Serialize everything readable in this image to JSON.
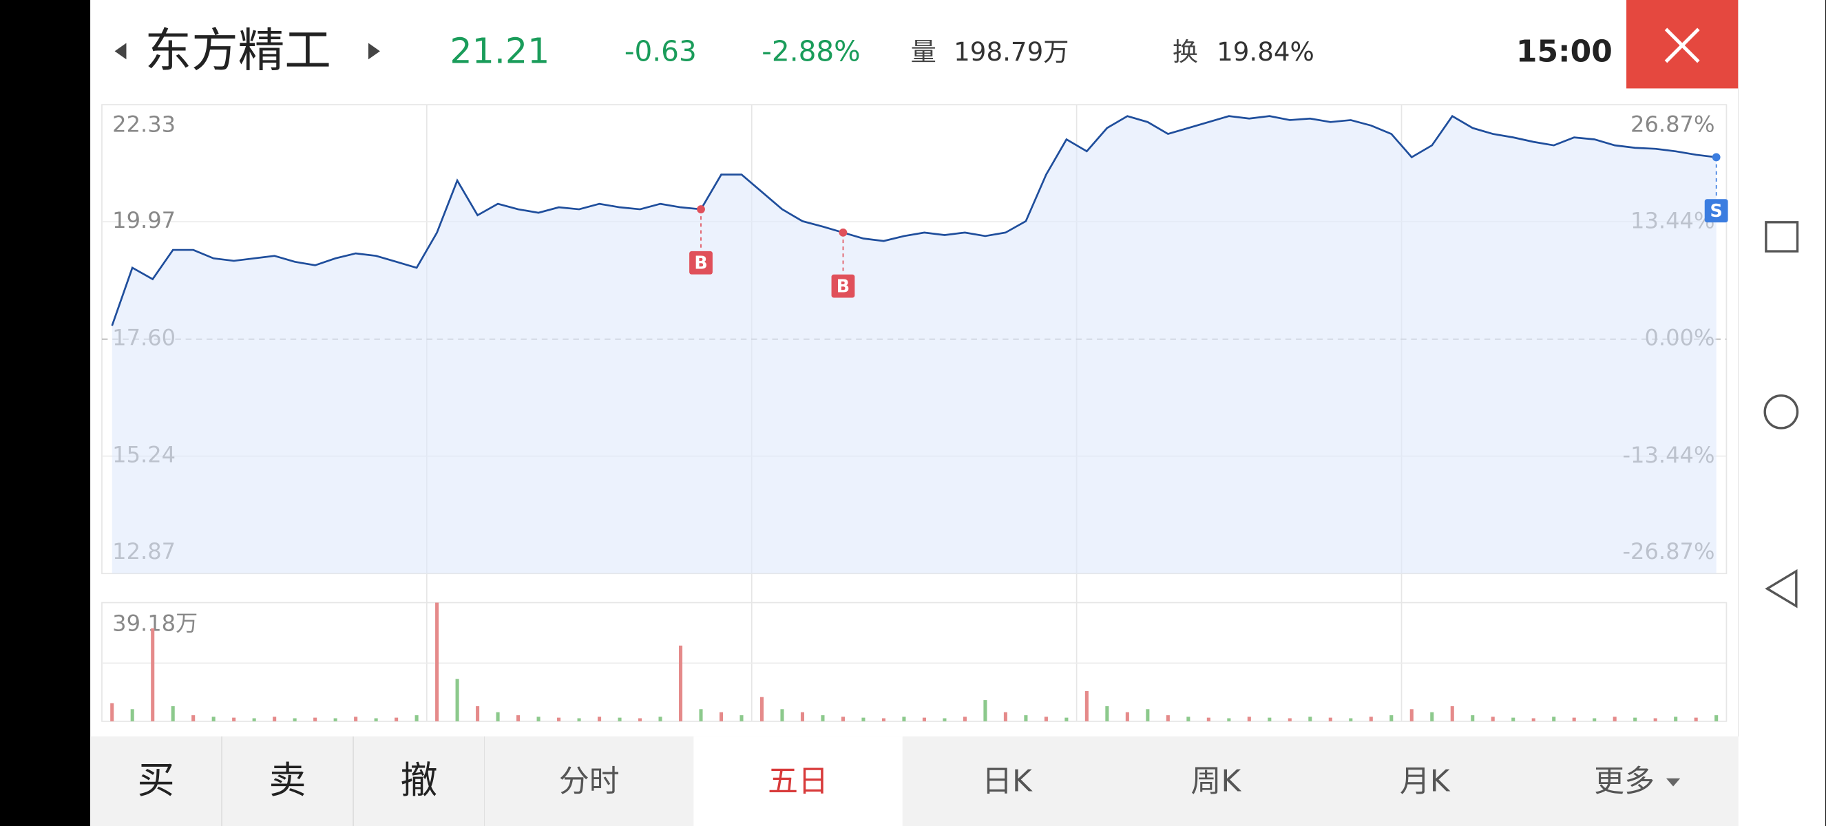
{
  "header": {
    "name": "东方精工",
    "price": "21.21",
    "change": "-0.63",
    "change_pct": "-2.88%",
    "volume_label": "量",
    "volume": "198.79万",
    "turnover_label": "换",
    "turnover": "19.84%",
    "time": "15:00"
  },
  "chart_data": {
    "type": "line",
    "ylim": [
      12.87,
      22.33
    ],
    "yticks": [
      12.87,
      15.24,
      {
        "value": 17.6,
        "label": "17.60"
      },
      19.97,
      22.33
    ],
    "y2lim": [
      -26.87,
      26.87
    ],
    "y2ticks": [
      {
        "value": -26.87,
        "label": "-26.87%"
      },
      {
        "value": -13.44,
        "label": "-13.44%"
      },
      {
        "value": 0,
        "label": "0.00%"
      },
      {
        "value": 13.44,
        "label": "13.44%"
      },
      {
        "value": 26.87,
        "label": "26.87%"
      }
    ],
    "series": [
      {
        "color": "#1f4e9c",
        "values": [
          17.87,
          19.04,
          18.81,
          19.4,
          19.4,
          19.23,
          19.18,
          19.23,
          19.28,
          19.16,
          19.09,
          19.23,
          19.33,
          19.28,
          19.16,
          19.04,
          19.75,
          20.8,
          20.1,
          20.33,
          20.22,
          20.15,
          20.26,
          20.22,
          20.33,
          20.26,
          20.22,
          20.33,
          20.26,
          20.22,
          20.92,
          20.92,
          20.57,
          20.22,
          19.98,
          19.87,
          19.75,
          19.63,
          19.58,
          19.68,
          19.75,
          19.7,
          19.75,
          19.68,
          19.75,
          19.98,
          20.92,
          21.63,
          21.39,
          21.86,
          22.1,
          21.98,
          21.74,
          21.86,
          21.98,
          22.1,
          22.05,
          22.1,
          22.02,
          22.05,
          21.98,
          22.02,
          21.91,
          21.74,
          21.27,
          21.51,
          22.1,
          21.86,
          21.74,
          21.67,
          21.58,
          21.51,
          21.67,
          21.63,
          21.51,
          21.46,
          21.44,
          21.39,
          21.32,
          21.27
        ]
      }
    ],
    "trades": [
      {
        "label": "B",
        "index": 29,
        "color": "#e0505a"
      },
      {
        "label": "B",
        "index": 36,
        "color": "#e0505a"
      },
      {
        "label": "S",
        "index": 79,
        "color": "#3b7de0"
      }
    ],
    "volume": {
      "ylim": [
        0,
        39.18
      ],
      "max_label": "39.18万",
      "colors": [
        "#e58a8a",
        "#8cc98c"
      ],
      "values": [
        6,
        4,
        30.7,
        5,
        2,
        1.5,
        1.2,
        1,
        1.5,
        1,
        1.2,
        1,
        1.5,
        1,
        1.2,
        2,
        39.18,
        14,
        5,
        3,
        2,
        1.5,
        1.2,
        1,
        1.5,
        1.2,
        1,
        1.5,
        25,
        4,
        3,
        2,
        8,
        4,
        3,
        2,
        1.5,
        1.2,
        1,
        1.5,
        1.2,
        1,
        1.5,
        7,
        3,
        2,
        1.5,
        1.2,
        10,
        5,
        3,
        4,
        2,
        1.5,
        1.2,
        1,
        1.5,
        1.2,
        1,
        1.5,
        1.2,
        1,
        1.5,
        2,
        4,
        3,
        5,
        2,
        1.5,
        1.2,
        1,
        1.5,
        1.2,
        1,
        1.5,
        1.2,
        1,
        1.5,
        1.2,
        2
      ]
    }
  },
  "tabs": {
    "actions": [
      "买",
      "卖",
      "撤"
    ],
    "periods": [
      "分时",
      "五日",
      "日K",
      "周K",
      "月K",
      "更多"
    ],
    "selected": 1
  }
}
